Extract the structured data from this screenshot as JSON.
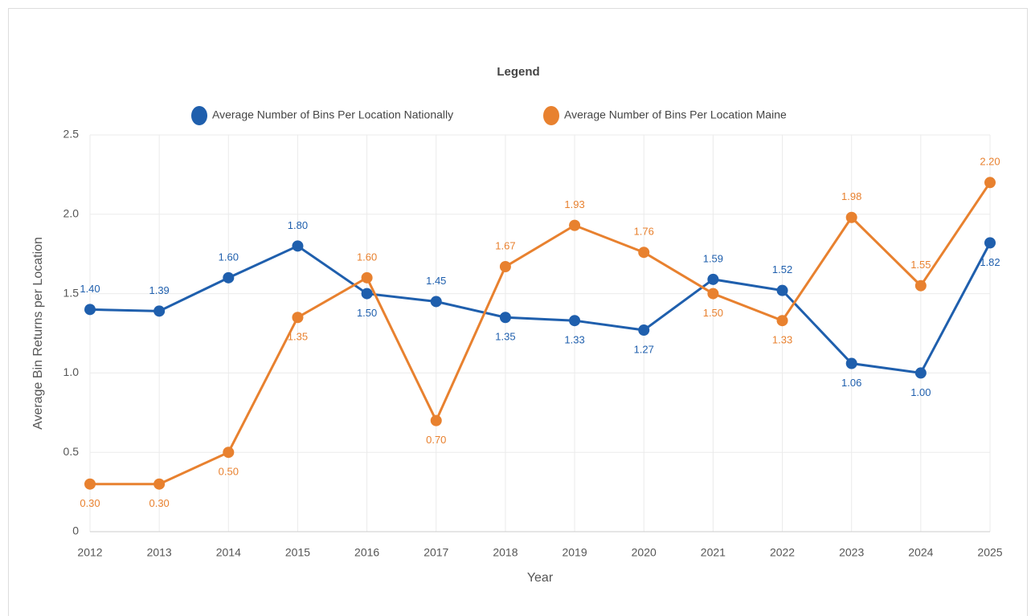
{
  "chart_data": {
    "type": "line",
    "legend_title": "Legend",
    "x_label": "Year",
    "y_label": "Average Bin Returns per Location",
    "categories": [
      "2012",
      "2013",
      "2014",
      "2015",
      "2016",
      "2017",
      "2018",
      "2019",
      "2020",
      "2021",
      "2022",
      "2023",
      "2024",
      "2025"
    ],
    "series": [
      {
        "name": "Average Number of Bins Per Location Nationally",
        "color": "#1f5fad",
        "values": [
          1.4,
          1.39,
          1.6,
          1.8,
          1.5,
          1.45,
          1.35,
          1.33,
          1.27,
          1.59,
          1.52,
          1.06,
          1.0,
          1.82
        ],
        "value_labels": [
          "1.40",
          "1.39",
          "1.60",
          "1.80",
          "1.50",
          "1.45",
          "1.35",
          "1.33",
          "1.27",
          "1.59",
          "1.52",
          "1.06",
          "1.00",
          "1.82"
        ]
      },
      {
        "name": "Average Number of Bins Per Location Maine",
        "color": "#e8812f",
        "values": [
          0.3,
          0.3,
          0.5,
          1.35,
          1.6,
          0.7,
          1.67,
          1.93,
          1.76,
          1.5,
          1.33,
          1.98,
          1.55,
          2.2
        ],
        "value_labels": [
          "0.30",
          "0.30",
          "0.50",
          "1.35",
          "1.60",
          "0.70",
          "1.67",
          "1.93",
          "1.76",
          "1.50",
          "1.33",
          "1.98",
          "1.55",
          "2.20"
        ]
      }
    ],
    "ylim": [
      0,
      2.5
    ],
    "yticks": [
      0,
      0.5,
      {
        "value": 1,
        "label": "1.0"
      },
      1.5,
      {
        "value": 2,
        "label": "2.0"
      },
      2.5
    ],
    "grid": true
  }
}
